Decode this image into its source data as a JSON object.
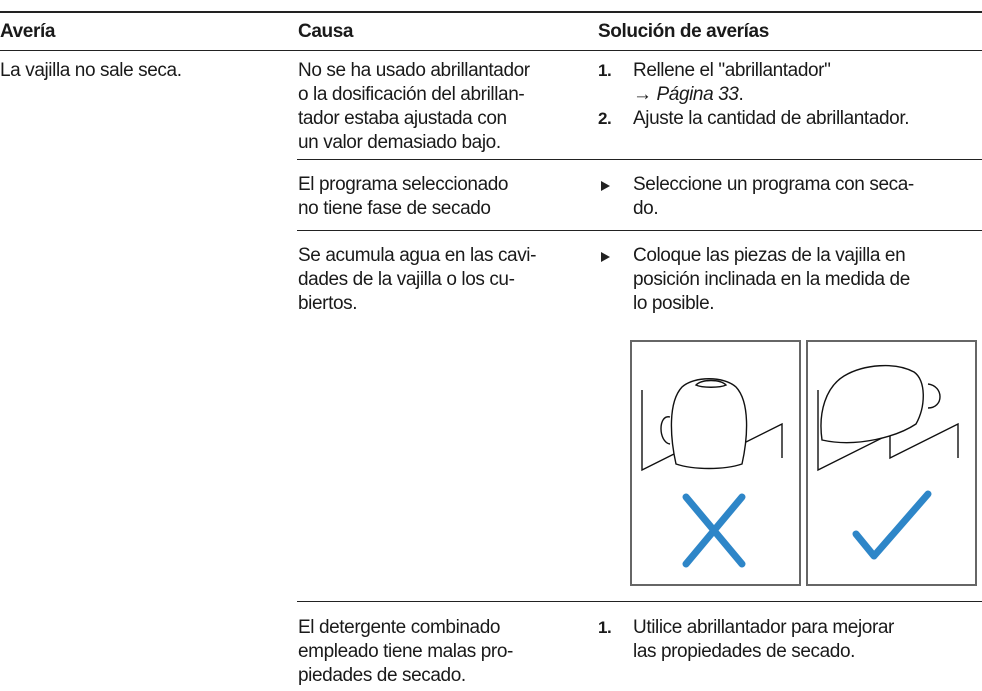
{
  "table": {
    "headers": [
      "Avería",
      "Causa",
      "Solución de averías"
    ],
    "rows": [
      {
        "fault": "La vajilla no sale seca.",
        "cause": [
          "No se ha usado abrillantador",
          "o la dosificación del abrillan-",
          "tador estaba ajustada con",
          "un valor demasiado bajo."
        ],
        "steps": [
          {
            "marker": "1.",
            "lines": [
              "Rellene el \"abrillantador\""
            ],
            "arrow": "→",
            "ref": "Página 33",
            "end": "."
          },
          {
            "marker": "2.",
            "lines": [
              "Ajuste la cantidad de abrillantador."
            ]
          }
        ]
      },
      {
        "cause": [
          "El programa seleccionado",
          "no tiene fase de secado"
        ],
        "steps": [
          {
            "lines": [
              "Seleccione un programa con seca-",
              "do."
            ]
          }
        ]
      },
      {
        "cause": [
          "Se acumula agua en las cavi-",
          "dades de la vajilla o los cu-",
          "biertos."
        ],
        "steps": [
          {
            "lines": [
              "Coloque las piezas de la vajilla en",
              "posición inclinada en la medida de",
              "lo posible."
            ]
          }
        ]
      },
      {
        "cause": [
          "El detergente combinado",
          "empleado tiene malas pro-",
          "piedades de secado."
        ],
        "steps": [
          {
            "marker": "1.",
            "lines": [
              "Utilice abrillantador para mejorar",
              "las propiedades de secado."
            ]
          }
        ]
      }
    ]
  }
}
